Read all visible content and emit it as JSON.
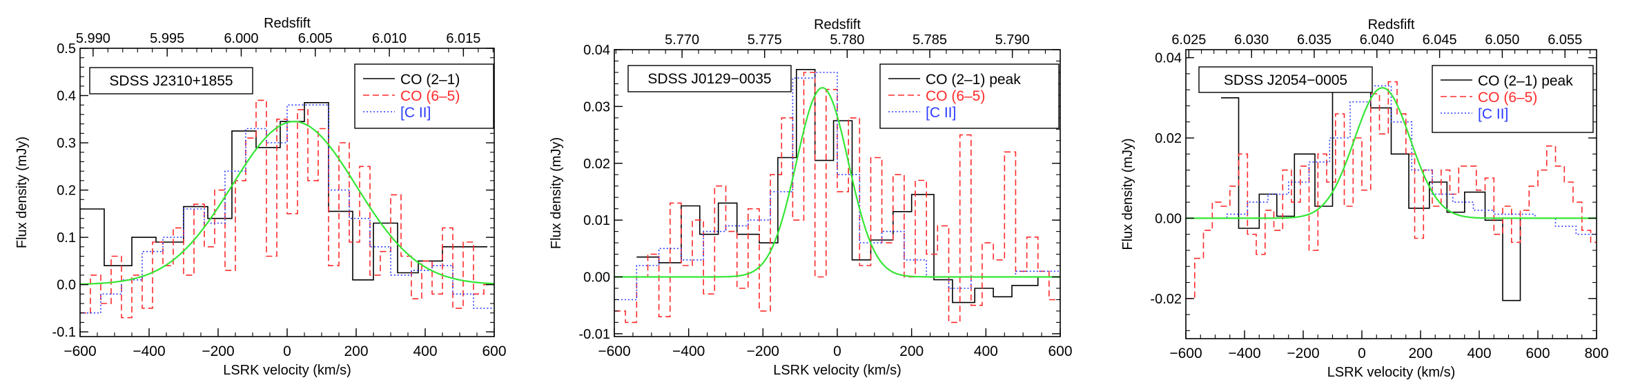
{
  "chart_data": [
    {
      "type": "line",
      "object_label": "SDSS J2310+1855",
      "xlabel": "LSRK velocity (km/s)",
      "ylabel": "Flux density (mJy)",
      "top_axis_label": "Redsfift",
      "xlim": [
        -600,
        600
      ],
      "ylim": [
        -0.11,
        0.5
      ],
      "x_ticks": [
        -600,
        -400,
        -200,
        0,
        200,
        400,
        600
      ],
      "x_tick_labels": [
        "−600",
        "−400",
        "−200",
        "0",
        "200",
        "400",
        "600"
      ],
      "y_ticks": [
        -0.1,
        0,
        0.1,
        0.2,
        0.3,
        0.4,
        0.5
      ],
      "y_tick_labels": [
        "-0.1",
        "0.0",
        "0.1",
        "0.2",
        "0.3",
        "0.4",
        "0.5"
      ],
      "top_ticks": [
        5.99,
        5.995,
        6.0,
        6.005,
        6.01,
        6.015
      ],
      "top_tick_labels": [
        "5.990",
        "5.995",
        "6.000",
        "6.005",
        "6.010",
        "6.015"
      ],
      "top_axis_map": {
        "z0": 6.0031,
        "z_per_kms": 2.33e-05
      },
      "legend_position": "top-right",
      "series": [
        {
          "name": "CO (2–1)",
          "style": "solid",
          "color": "#000000",
          "edges": [
            -600,
            -530,
            -450,
            -380,
            -300,
            -230,
            -160,
            -90,
            -20,
            50,
            120,
            190,
            250,
            320,
            380,
            450,
            520,
            580
          ],
          "values": [
            0.16,
            0.04,
            0.1,
            0.09,
            0.165,
            0.14,
            0.325,
            0.29,
            0.345,
            0.385,
            0.155,
            0.01,
            0.13,
            0.025,
            0.05,
            0.08,
            0.08
          ]
        },
        {
          "name": "CO (6–5)",
          "style": "dashed",
          "color": "#ff2a2a",
          "edges": [
            -600,
            -570,
            -540,
            -510,
            -480,
            -450,
            -420,
            -390,
            -360,
            -330,
            -300,
            -270,
            -240,
            -210,
            -180,
            -150,
            -120,
            -90,
            -60,
            -30,
            0,
            30,
            60,
            90,
            120,
            150,
            180,
            210,
            240,
            270,
            300,
            330,
            360,
            390,
            420,
            450,
            480,
            510,
            540,
            570,
            600
          ],
          "values": [
            -0.06,
            0.02,
            -0.04,
            0.06,
            -0.07,
            0.02,
            -0.05,
            0.09,
            0.04,
            0.12,
            0.02,
            0.17,
            0.08,
            0.2,
            0.03,
            0.22,
            0.31,
            0.39,
            0.06,
            0.35,
            0.15,
            0.37,
            0.22,
            0.33,
            0.04,
            0.3,
            0.09,
            0.25,
            0.02,
            0.07,
            0.19,
            0.06,
            -0.03,
            0.05,
            -0.02,
            0.12,
            -0.05,
            0.09,
            -0.02,
            0.0
          ]
        },
        {
          "name": "[C II]",
          "style": "dotted",
          "color": "#2b3bff",
          "edges": [
            -600,
            -540,
            -480,
            -420,
            -360,
            -300,
            -240,
            -180,
            -120,
            -60,
            0,
            60,
            120,
            180,
            240,
            300,
            360,
            420,
            480,
            540,
            600
          ],
          "values": [
            -0.06,
            -0.02,
            0.01,
            0.07,
            0.1,
            0.16,
            0.13,
            0.24,
            0.33,
            0.3,
            0.38,
            0.38,
            0.2,
            0.14,
            0.08,
            0.02,
            0.03,
            0.04,
            -0.02,
            -0.05
          ]
        }
      ],
      "fit": {
        "color": "#33e633",
        "amplitude": 0.345,
        "center": 20,
        "sigma": 180,
        "offset": 0.0
      }
    },
    {
      "type": "line",
      "object_label": "SDSS J0129−0035",
      "xlabel": "LSRK velocity (km/s)",
      "ylabel": "Flux density (mJy)",
      "top_axis_label": "Redsfift",
      "xlim": [
        -600,
        600
      ],
      "ylim": [
        -0.0105,
        0.04
      ],
      "x_ticks": [
        -600,
        -400,
        -200,
        0,
        200,
        400,
        600
      ],
      "x_tick_labels": [
        "−600",
        "−400",
        "−200",
        "0",
        "200",
        "400",
        "600"
      ],
      "y_ticks": [
        -0.01,
        0,
        0.01,
        0.02,
        0.03,
        0.04
      ],
      "y_tick_labels": [
        "-0.01",
        "0.00",
        "0.01",
        "0.02",
        "0.03",
        "0.04"
      ],
      "top_ticks": [
        5.77,
        5.775,
        5.78,
        5.785,
        5.79
      ],
      "top_tick_labels": [
        "5.770",
        "5.775",
        "5.780",
        "5.785",
        "5.790"
      ],
      "top_axis_map": {
        "z0": 5.7794,
        "z_per_kms": 2.25e-05
      },
      "legend_position": "top-right",
      "series": [
        {
          "name": "CO (2–1) peak",
          "style": "solid",
          "color": "#000000",
          "edges": [
            -540,
            -480,
            -420,
            -370,
            -320,
            -270,
            -210,
            -160,
            -110,
            -60,
            -10,
            40,
            90,
            150,
            200,
            260,
            310,
            370,
            420,
            470,
            540,
            600
          ],
          "values": [
            0.0035,
            0.0025,
            0.0125,
            0.0075,
            0.013,
            0.0075,
            0.006,
            0.021,
            0.0365,
            0.0205,
            0.0275,
            0.003,
            0.0065,
            0.0115,
            0.0145,
            -0.0005,
            -0.0045,
            -0.002,
            -0.0035,
            -0.0015,
            0.0
          ]
        },
        {
          "name": "CO (6–5)",
          "style": "dashed",
          "color": "#ff2a2a",
          "edges": [
            -600,
            -570,
            -540,
            -510,
            -480,
            -450,
            -420,
            -390,
            -360,
            -330,
            -300,
            -270,
            -240,
            -210,
            -180,
            -150,
            -120,
            -90,
            -60,
            -30,
            0,
            30,
            60,
            90,
            120,
            150,
            180,
            210,
            240,
            270,
            300,
            330,
            360,
            390,
            420,
            450,
            480,
            510,
            540,
            570,
            600
          ],
          "values": [
            -0.006,
            -0.008,
            0.0,
            0.004,
            -0.007,
            0.013,
            0.002,
            0.01,
            -0.003,
            0.016,
            0.008,
            -0.002,
            0.012,
            -0.006,
            0.018,
            0.028,
            0.01,
            0.036,
            0.0,
            0.033,
            0.015,
            0.028,
            0.002,
            0.021,
            0.006,
            0.018,
            0.0,
            0.017,
            0.004,
            0.009,
            -0.008,
            0.025,
            -0.005,
            0.006,
            0.003,
            0.022,
            0.001,
            0.007,
            0.001,
            -0.004
          ]
        },
        {
          "name": "[C II]",
          "style": "dotted",
          "color": "#2b3bff",
          "edges": [
            -600,
            -540,
            -480,
            -420,
            -360,
            -300,
            -240,
            -180,
            -120,
            -60,
            0,
            60,
            120,
            180,
            240,
            300,
            360,
            420,
            480,
            540,
            600
          ],
          "values": [
            -0.004,
            0.002,
            0.005,
            0.003,
            0.008,
            0.009,
            0.01,
            0.015,
            0.035,
            0.036,
            0.018,
            0.006,
            0.008,
            0.003,
            0.0,
            -0.002,
            0.0,
            0.0,
            0.001,
            0.001
          ]
        }
      ],
      "fit": {
        "color": "#33e633",
        "amplitude": 0.0333,
        "center": -40,
        "sigma": 70,
        "offset": 0.0
      }
    },
    {
      "type": "line",
      "object_label": "SDSS J2054−0005",
      "xlabel": "LSRK velocity (km/s)",
      "ylabel": "Flux density (mJy)",
      "top_axis_label": "Redsfift",
      "xlim": [
        -600,
        800
      ],
      "ylim": [
        -0.03,
        0.042
      ],
      "x_ticks": [
        -600,
        -400,
        -200,
        0,
        200,
        400,
        600,
        800
      ],
      "x_tick_labels": [
        "−600",
        "−400",
        "−200",
        "0",
        "200",
        "400",
        "600",
        "800"
      ],
      "y_ticks": [
        -0.02,
        0,
        0.02,
        0.04
      ],
      "y_tick_labels": [
        "-0.02",
        "0.00",
        "0.02",
        "0.04"
      ],
      "top_ticks": [
        6.025,
        6.03,
        6.035,
        6.04,
        6.045,
        6.05,
        6.055
      ],
      "top_tick_labels": [
        "6.025",
        "6.030",
        "6.035",
        "6.040",
        "6.045",
        "6.050",
        "6.055"
      ],
      "top_axis_map": {
        "z0": 6.0388,
        "z_per_kms": 2.34e-05
      },
      "legend_position": "top-right",
      "series": [
        {
          "name": "CO (2–1) peak",
          "style": "solid",
          "color": "#000000",
          "edges": [
            -480,
            -420,
            -350,
            -290,
            -230,
            -160,
            -100,
            -30,
            30,
            100,
            160,
            230,
            290,
            350,
            420,
            480,
            540,
            600
          ],
          "values": [
            0.03,
            -0.0025,
            0.006,
            0.0005,
            0.016,
            0.003,
            0.0325,
            0.033,
            0.0275,
            0.016,
            0.0025,
            0.009,
            0.0015,
            0.0065,
            -0.0005,
            -0.0205,
            0.0
          ]
        },
        {
          "name": "CO (6–5)",
          "style": "dashed",
          "color": "#ff2a2a",
          "edges": [
            -600,
            -570,
            -540,
            -510,
            -480,
            -450,
            -420,
            -390,
            -360,
            -330,
            -300,
            -270,
            -240,
            -210,
            -180,
            -150,
            -120,
            -90,
            -60,
            -30,
            0,
            30,
            60,
            90,
            120,
            150,
            180,
            210,
            240,
            270,
            300,
            330,
            360,
            390,
            420,
            450,
            480,
            510,
            540,
            570,
            600,
            630,
            660,
            690,
            720,
            750,
            780,
            800
          ],
          "values": [
            -0.02,
            -0.01,
            -0.003,
            0.004,
            0.003,
            0.008,
            0.016,
            -0.004,
            -0.009,
            0.002,
            -0.003,
            0.012,
            0.004,
            0.013,
            -0.008,
            0.016,
            0.009,
            0.026,
            0.003,
            0.02,
            0.007,
            0.031,
            0.021,
            0.034,
            0.026,
            0.016,
            -0.005,
            0.012,
            0.003,
            0.012,
            0.006,
            0.013,
            0.013,
            0.007,
            0.01,
            -0.004,
            0.003,
            -0.006,
            0.002,
            0.008,
            0.012,
            0.018,
            0.013,
            0.009,
            0.004,
            -0.003,
            -0.006
          ]
        },
        {
          "name": "[C II]",
          "style": "dotted",
          "color": "#2b3bff",
          "edges": [
            -600,
            -530,
            -460,
            -390,
            -320,
            -250,
            -180,
            -110,
            -40,
            30,
            100,
            170,
            240,
            310,
            380,
            450,
            520,
            590,
            660,
            730,
            800
          ],
          "values": [
            0.0,
            0.0,
            0.001,
            0.004,
            0.006,
            0.009,
            0.014,
            0.02,
            0.029,
            0.033,
            0.024,
            0.012,
            0.006,
            0.004,
            0.002,
            0.001,
            0.001,
            0.0,
            -0.002,
            -0.004
          ]
        }
      ],
      "fit": {
        "color": "#33e633",
        "amplitude": 0.0325,
        "center": 70,
        "sigma": 95,
        "offset": 0.0
      }
    }
  ]
}
